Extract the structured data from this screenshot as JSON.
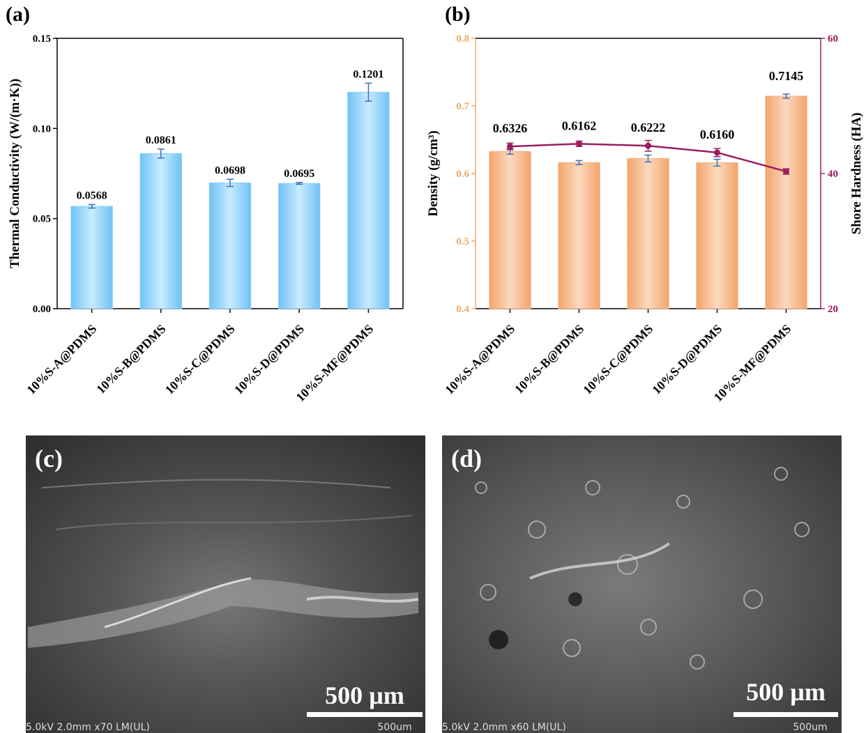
{
  "chart_data": [
    {
      "type": "bar",
      "panel": "(a)",
      "y_label": "Thermal Conductivity (W/(m·K))",
      "categories": [
        "10%S-A@PDMS",
        "10%S-B@PDMS",
        "10%S-C@PDMS",
        "10%S-D@PDMS",
        "10%S-MF@PDMS"
      ],
      "series": [
        {
          "color": "#8fd2f8",
          "values": [
            0.0568,
            0.0861,
            0.0698,
            0.0695,
            0.1201
          ],
          "errors": [
            0.001,
            0.0025,
            0.002,
            0.0005,
            0.005
          ]
        }
      ],
      "ylim": [
        0,
        0.15
      ],
      "yticks": [
        {
          "value": 0,
          "label": "0.00"
        },
        {
          "value": 0.05,
          "label": "0.05"
        },
        {
          "value": 0.1,
          "label": "0.10"
        },
        {
          "value": 0.15,
          "label": "0.15"
        }
      ],
      "y_axis_color": "#000000"
    },
    {
      "type": "combo",
      "panel": "(b)",
      "y_label": "Density (g/cm³)",
      "y2_label": "Shore Hardness (HA)",
      "categories": [
        "10%S-A@PDMS",
        "10%S-B@PDMS",
        "10%S-C@PDMS",
        "10%S-D@PDMS",
        "10%S-MF@PDMS"
      ],
      "series": [
        {
          "type": "bar",
          "color": "#f6b584",
          "values": [
            0.6326,
            0.6162,
            0.6222,
            0.616,
            0.7145
          ],
          "value_labels": [
            "0.6326",
            "0.6162",
            "0.6222",
            "0.6160",
            "0.7145"
          ],
          "errors": [
            0.004,
            0.003,
            0.005,
            0.005,
            0.003
          ]
        },
        {
          "type": "line",
          "axis": "y2",
          "color": "#9b1d5e",
          "values": [
            44,
            44.4,
            44.1,
            43.1,
            40.3
          ],
          "errors": [
            0.5,
            0.4,
            0.8,
            0.6,
            0.4
          ]
        }
      ],
      "ylim": [
        0.4,
        0.8
      ],
      "yticks": [
        0.4,
        0.5,
        0.6,
        0.7,
        0.8
      ],
      "y2lim": [
        20,
        60
      ],
      "y2ticks": [
        20,
        40,
        60
      ],
      "y_axis_color": "#f0a868",
      "y2_axis_color": "#9b1d5e"
    }
  ],
  "images": [
    {
      "panel": "(c)",
      "scale": "500 µm",
      "info": "5.0kV 2.0mm x70 LM(UL)",
      "bar_label": "500um"
    },
    {
      "panel": "(d)",
      "scale": "500 µm",
      "info": "5.0kV 2.0mm x60 LM(UL)",
      "bar_label": "500um"
    }
  ]
}
